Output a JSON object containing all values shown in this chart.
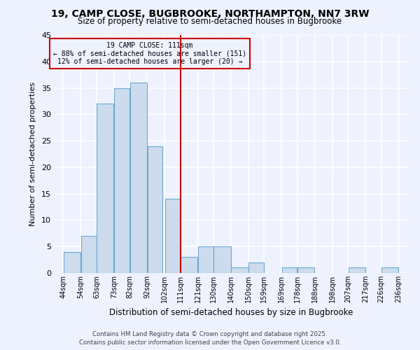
{
  "title": "19, CAMP CLOSE, BUGBROOKE, NORTHAMPTON, NN7 3RW",
  "subtitle": "Size of property relative to semi-detached houses in Bugbrooke",
  "xlabel": "Distribution of semi-detached houses by size in Bugbrooke",
  "ylabel": "Number of semi-detached properties",
  "bar_left_edges": [
    44,
    54,
    63,
    73,
    82,
    92,
    102,
    111,
    121,
    130,
    140,
    150,
    159,
    169,
    178,
    188,
    198,
    207,
    217,
    226
  ],
  "bar_widths": [
    10,
    9,
    10,
    9,
    10,
    9,
    9,
    10,
    9,
    10,
    10,
    9,
    10,
    9,
    10,
    10,
    9,
    10,
    9,
    10
  ],
  "bar_heights": [
    4,
    7,
    32,
    35,
    36,
    24,
    14,
    3,
    5,
    5,
    1,
    2,
    0,
    1,
    1,
    0,
    0,
    1,
    0,
    1
  ],
  "tick_labels": [
    "44sqm",
    "54sqm",
    "63sqm",
    "73sqm",
    "82sqm",
    "92sqm",
    "102sqm",
    "111sqm",
    "121sqm",
    "130sqm",
    "140sqm",
    "150sqm",
    "159sqm",
    "169sqm",
    "178sqm",
    "188sqm",
    "198sqm",
    "207sqm",
    "217sqm",
    "226sqm",
    "236sqm"
  ],
  "tick_positions": [
    44,
    54,
    63,
    73,
    82,
    92,
    102,
    111,
    121,
    130,
    140,
    150,
    159,
    169,
    178,
    188,
    198,
    207,
    217,
    226,
    236
  ],
  "bar_color": "#ccdcec",
  "bar_edge_color": "#6aaad4",
  "vline_x": 111,
  "vline_color": "#cc0000",
  "annotation_title": "19 CAMP CLOSE: 111sqm",
  "annotation_line1": "← 88% of semi-detached houses are smaller (151)",
  "annotation_line2": "12% of semi-detached houses are larger (20) →",
  "annotation_box_edge": "#cc0000",
  "ylim": [
    0,
    45
  ],
  "xlim": [
    39,
    241
  ],
  "bg_color": "#eef2ff",
  "grid_color": "#ffffff",
  "footer1": "Contains HM Land Registry data © Crown copyright and database right 2025.",
  "footer2": "Contains public sector information licensed under the Open Government Licence v3.0."
}
